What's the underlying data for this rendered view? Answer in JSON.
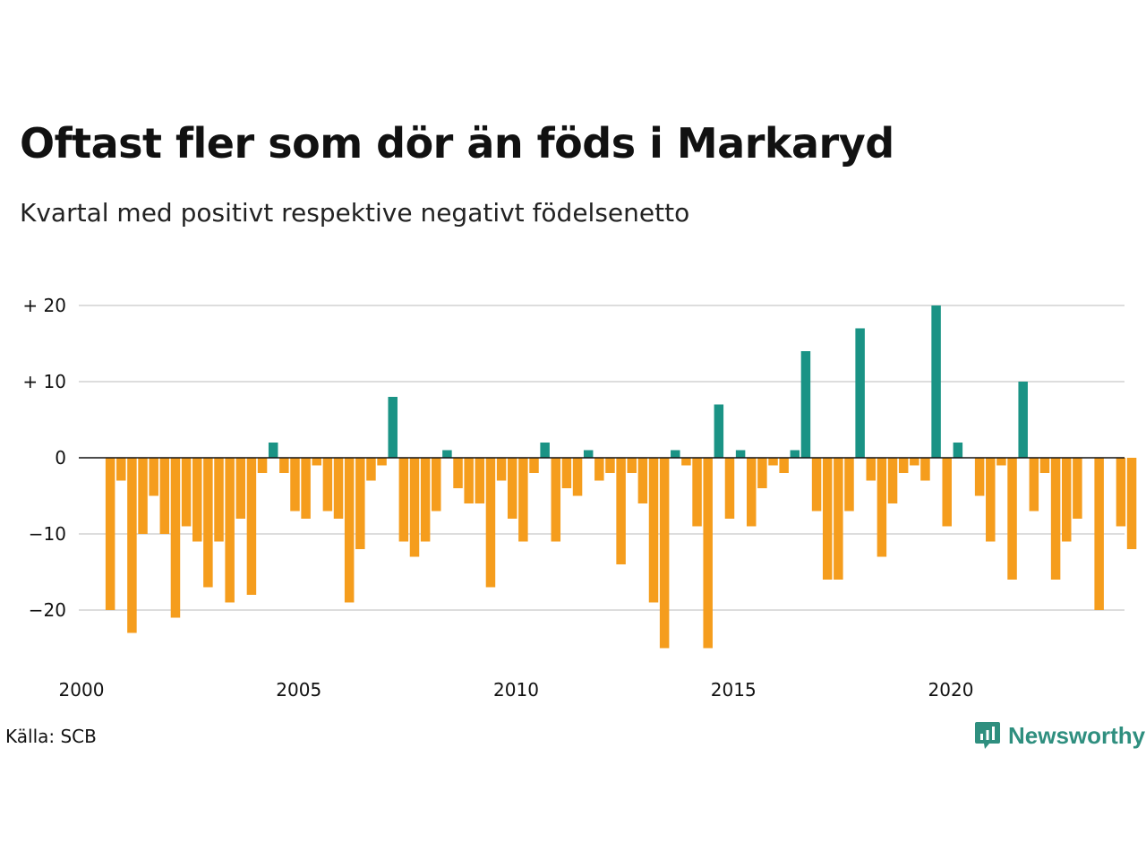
{
  "title": "Oftast fler som dör än föds i Markaryd",
  "subtitle": "Kvartal med positivt respektive negativt födelsenetto",
  "source": "Källa: SCB",
  "brand": {
    "name": "Newsworthy",
    "icon": "newsworthy-logo-icon"
  },
  "colors": {
    "positive": "#1a9385",
    "negative": "#f59d1d",
    "grid": "#dddddd",
    "zero_line": "#111111"
  },
  "chart_data": {
    "type": "bar",
    "x_start": 2000.25,
    "x_step": 0.25,
    "xlim": [
      2000,
      2024.25
    ],
    "ylim": [
      -25,
      20
    ],
    "x_ticks": [
      {
        "value": 2000,
        "label": "2000"
      },
      {
        "value": 2005,
        "label": "2005"
      },
      {
        "value": 2010,
        "label": "2010"
      },
      {
        "value": 2015,
        "label": "2015"
      },
      {
        "value": 2020,
        "label": "2020"
      }
    ],
    "y_ticks": [
      {
        "value": 20,
        "label": "+ 20"
      },
      {
        "value": 10,
        "label": "+ 10"
      },
      {
        "value": 0,
        "label": "0"
      },
      {
        "value": -10,
        "label": "−10"
      },
      {
        "value": -20,
        "label": "−20"
      }
    ],
    "grid": true,
    "values": [
      -20,
      -3,
      -23,
      -10,
      -5,
      -10,
      -21,
      -9,
      -11,
      -17,
      -11,
      -19,
      -8,
      -18,
      -2,
      2,
      -2,
      -7,
      -8,
      -1,
      -7,
      -8,
      -19,
      -12,
      -3,
      -1,
      8,
      -11,
      -13,
      -11,
      -7,
      1,
      -4,
      -6,
      -6,
      -17,
      -3,
      -8,
      -11,
      -2,
      2,
      -11,
      -4,
      -5,
      1,
      -3,
      -2,
      -14,
      -2,
      -6,
      -19,
      -25,
      1,
      -1,
      -9,
      -25,
      7,
      -8,
      1,
      -9,
      -4,
      -1,
      -2,
      1,
      14,
      -7,
      -16,
      -16,
      -7,
      17,
      -3,
      -13,
      -6,
      -2,
      -1,
      -3,
      20,
      -9,
      2,
      0,
      -5,
      -11,
      -1,
      -16,
      10,
      -7,
      -2,
      -16,
      -11,
      -8,
      0,
      -20,
      0,
      -9,
      -12
    ]
  }
}
